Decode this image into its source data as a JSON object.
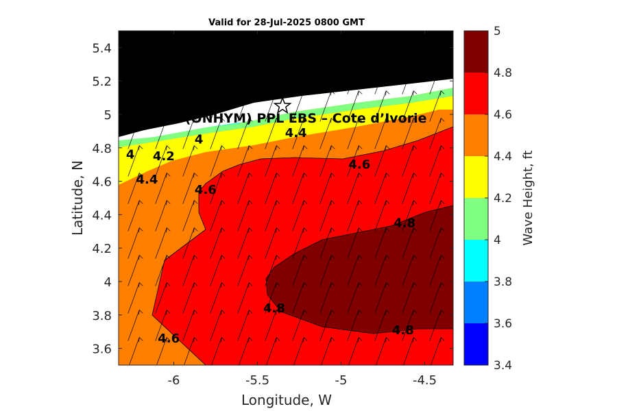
{
  "chart_data": {
    "type": "heatmap",
    "title": "Valid for 28-Jul-2025 0800 GMT",
    "xlabel": "Longitude, W",
    "ylabel": "Latitude, N",
    "xlim": [
      -6.33,
      -4.33
    ],
    "ylim": [
      3.5,
      5.5
    ],
    "x_ticks": [
      -6,
      -5.5,
      -5,
      -4.5
    ],
    "x_tick_labels": [
      "-6",
      "-5.5",
      "-5",
      "-4.5"
    ],
    "y_ticks": [
      3.6,
      3.8,
      4,
      4.2,
      4.4,
      4.6,
      4.8,
      5,
      5.2,
      5.4
    ],
    "y_tick_labels": [
      "3.6",
      "3.8",
      "4",
      "4.2",
      "4.4",
      "4.6",
      "4.8",
      "5",
      "5.2",
      "5.4"
    ],
    "colorbar": {
      "label": "Wave Height, ft",
      "levels": [
        3.4,
        3.6,
        3.8,
        4.0,
        4.2,
        4.4,
        4.6,
        4.8,
        5.0
      ],
      "tick_labels": [
        "3.4",
        "3.6",
        "3.8",
        "4",
        "4.2",
        "4.4",
        "4.6",
        "4.8",
        "5"
      ],
      "colors": [
        "#0000ff",
        "#0080ff",
        "#00ffff",
        "#80ff80",
        "#ffff00",
        "#ff8000",
        "#ff0000",
        "#800000"
      ]
    },
    "contour_labels": [
      {
        "text": "4",
        "lon": -6.26,
        "lat": 4.76
      },
      {
        "text": "4.2",
        "lon": -6.06,
        "lat": 4.75
      },
      {
        "text": "4.4",
        "lon": -6.16,
        "lat": 4.61
      },
      {
        "text": "4",
        "lon": -5.85,
        "lat": 4.85
      },
      {
        "text": "4.4",
        "lon": -5.27,
        "lat": 4.89
      },
      {
        "text": "4.6",
        "lon": -5.81,
        "lat": 4.55
      },
      {
        "text": "4.6",
        "lon": -4.89,
        "lat": 4.7
      },
      {
        "text": "4.8",
        "lon": -4.62,
        "lat": 4.35
      },
      {
        "text": "4.8",
        "lon": -5.4,
        "lat": 3.84
      },
      {
        "text": "4.8",
        "lon": -4.63,
        "lat": 3.71
      },
      {
        "text": "4.6",
        "lon": -6.03,
        "lat": 3.66
      }
    ],
    "site": {
      "name": "(ONHYM) PPL EBS – Cote d’Ivorie",
      "lon": -5.35,
      "lat": 5.05
    },
    "wave_direction": "arrows pointing north-northeast",
    "grid": false,
    "colors": {
      "land": "#000000",
      "missing": "#ffffff",
      "arrow": "#000000"
    }
  }
}
